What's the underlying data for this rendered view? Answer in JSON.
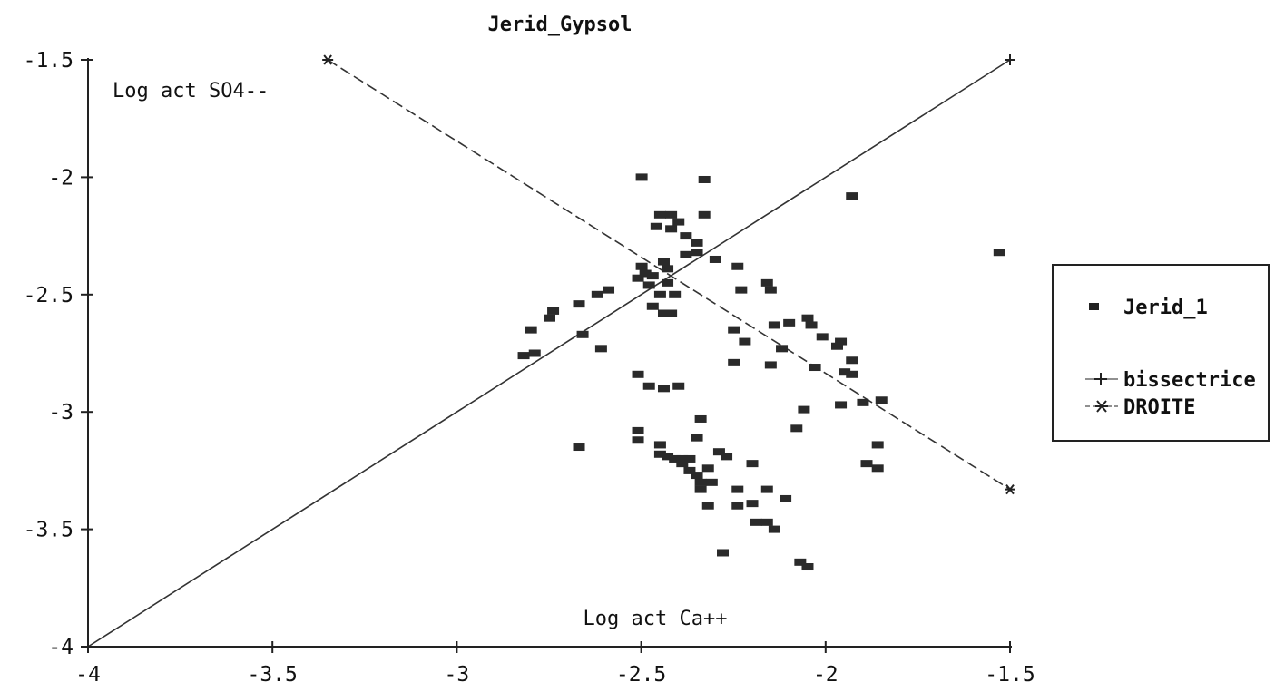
{
  "chart_data": {
    "type": "scatter",
    "title": "Jerid_Gypsol",
    "xlabel": "Log act Ca++",
    "ylabel": "Log act SO4--",
    "xlim": [
      -4,
      -1.5
    ],
    "ylim": [
      -4,
      -1.5
    ],
    "x_ticks": [
      "-4",
      "-3.5",
      "-3",
      "-2.5",
      "-2",
      "-1.5"
    ],
    "y_ticks": [
      "-1.5",
      "-2",
      "-2.5",
      "-3",
      "-3.5",
      "-4"
    ],
    "x_tick_values": [
      -4,
      -3.5,
      -3,
      -2.5,
      -2,
      -1.5
    ],
    "y_tick_values": [
      -1.5,
      -2,
      -2.5,
      -3,
      -3.5,
      -4
    ],
    "legend_position": "right",
    "series": [
      {
        "name": "Jerid_1",
        "marker": "square",
        "points": [
          [
            -2.5,
            -2.0
          ],
          [
            -2.33,
            -2.01
          ],
          [
            -1.93,
            -2.08
          ],
          [
            -1.53,
            -2.32
          ],
          [
            -2.45,
            -2.16
          ],
          [
            -2.42,
            -2.16
          ],
          [
            -2.4,
            -2.19
          ],
          [
            -2.46,
            -2.21
          ],
          [
            -2.42,
            -2.22
          ],
          [
            -2.33,
            -2.16
          ],
          [
            -2.38,
            -2.25
          ],
          [
            -2.35,
            -2.28
          ],
          [
            -2.35,
            -2.32
          ],
          [
            -2.38,
            -2.33
          ],
          [
            -2.3,
            -2.35
          ],
          [
            -2.24,
            -2.38
          ],
          [
            -2.5,
            -2.38
          ],
          [
            -2.44,
            -2.36
          ],
          [
            -2.43,
            -2.39
          ],
          [
            -2.49,
            -2.41
          ],
          [
            -2.47,
            -2.42
          ],
          [
            -2.51,
            -2.43
          ],
          [
            -2.48,
            -2.46
          ],
          [
            -2.43,
            -2.45
          ],
          [
            -2.45,
            -2.5
          ],
          [
            -2.41,
            -2.5
          ],
          [
            -2.47,
            -2.55
          ],
          [
            -2.44,
            -2.58
          ],
          [
            -2.42,
            -2.58
          ],
          [
            -2.59,
            -2.48
          ],
          [
            -2.62,
            -2.5
          ],
          [
            -2.67,
            -2.54
          ],
          [
            -2.74,
            -2.57
          ],
          [
            -2.75,
            -2.6
          ],
          [
            -2.8,
            -2.65
          ],
          [
            -2.66,
            -2.67
          ],
          [
            -2.61,
            -2.73
          ],
          [
            -2.79,
            -2.75
          ],
          [
            -2.82,
            -2.76
          ],
          [
            -2.23,
            -2.48
          ],
          [
            -2.16,
            -2.45
          ],
          [
            -2.15,
            -2.48
          ],
          [
            -2.25,
            -2.65
          ],
          [
            -2.14,
            -2.63
          ],
          [
            -2.1,
            -2.62
          ],
          [
            -2.05,
            -2.6
          ],
          [
            -2.04,
            -2.63
          ],
          [
            -2.01,
            -2.68
          ],
          [
            -1.97,
            -2.72
          ],
          [
            -1.96,
            -2.7
          ],
          [
            -1.93,
            -2.78
          ],
          [
            -2.22,
            -2.7
          ],
          [
            -2.12,
            -2.73
          ],
          [
            -2.25,
            -2.79
          ],
          [
            -2.15,
            -2.8
          ],
          [
            -2.03,
            -2.81
          ],
          [
            -1.95,
            -2.83
          ],
          [
            -1.93,
            -2.84
          ],
          [
            -1.85,
            -2.95
          ],
          [
            -1.9,
            -2.96
          ],
          [
            -1.96,
            -2.97
          ],
          [
            -2.06,
            -2.99
          ],
          [
            -2.08,
            -3.07
          ],
          [
            -2.51,
            -2.84
          ],
          [
            -2.48,
            -2.89
          ],
          [
            -2.44,
            -2.9
          ],
          [
            -2.4,
            -2.89
          ],
          [
            -2.34,
            -3.03
          ],
          [
            -2.67,
            -3.15
          ],
          [
            -2.51,
            -3.08
          ],
          [
            -2.51,
            -3.12
          ],
          [
            -2.45,
            -3.14
          ],
          [
            -2.45,
            -3.18
          ],
          [
            -2.43,
            -3.19
          ],
          [
            -2.41,
            -3.2
          ],
          [
            -2.39,
            -3.2
          ],
          [
            -2.37,
            -3.2
          ],
          [
            -2.35,
            -3.11
          ],
          [
            -2.39,
            -3.22
          ],
          [
            -2.37,
            -3.25
          ],
          [
            -2.32,
            -3.24
          ],
          [
            -2.35,
            -3.27
          ],
          [
            -2.34,
            -3.3
          ],
          [
            -2.34,
            -3.33
          ],
          [
            -2.31,
            -3.3
          ],
          [
            -2.29,
            -3.17
          ],
          [
            -2.27,
            -3.19
          ],
          [
            -2.2,
            -3.22
          ],
          [
            -2.24,
            -3.33
          ],
          [
            -2.2,
            -3.39
          ],
          [
            -2.24,
            -3.4
          ],
          [
            -2.32,
            -3.4
          ],
          [
            -2.16,
            -3.33
          ],
          [
            -2.11,
            -3.37
          ],
          [
            -2.19,
            -3.47
          ],
          [
            -2.16,
            -3.47
          ],
          [
            -2.14,
            -3.5
          ],
          [
            -2.28,
            -3.6
          ],
          [
            -2.07,
            -3.64
          ],
          [
            -2.05,
            -3.66
          ],
          [
            -1.89,
            -3.22
          ],
          [
            -1.86,
            -3.24
          ],
          [
            -1.86,
            -3.14
          ]
        ]
      },
      {
        "name": "bissectrice",
        "marker": "plus",
        "line": "solid",
        "points": [
          [
            -4,
            -4
          ],
          [
            -1.5,
            -1.5
          ]
        ]
      },
      {
        "name": "DROITE",
        "marker": "asterisk",
        "line": "dashed",
        "points": [
          [
            -3.35,
            -1.5
          ],
          [
            -1.5,
            -3.33
          ]
        ]
      }
    ]
  }
}
